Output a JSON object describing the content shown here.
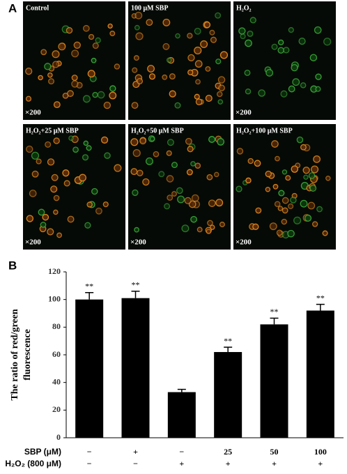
{
  "panel_a": {
    "label": "A",
    "panels": [
      {
        "title": "Control",
        "magnification": "×200"
      },
      {
        "title": "100 μM SBP"
      },
      {
        "title": "H₂O₂",
        "magnification": "×200"
      },
      {
        "title": "H₂O₂+25 μM SBP",
        "magnification": "×200"
      },
      {
        "title": "H₂O₂+50 μM SBP",
        "magnification": "×200"
      },
      {
        "title": "H₂O₂+100 μM SBP",
        "magnification": "×200"
      }
    ]
  },
  "chart_data": {
    "type": "bar",
    "label": "B",
    "y_label": [
      "The ratio of  red/green",
      "fluorescence"
    ],
    "series": [
      {
        "color": "#000000",
        "values": [
          100,
          101,
          33,
          62,
          82,
          92
        ],
        "errors": [
          5,
          5,
          2,
          3.5,
          4.5,
          4.5
        ]
      }
    ],
    "value_annotations": [
      "**",
      "**",
      null,
      "**",
      "**",
      "**"
    ],
    "condition_rows": [
      {
        "label": "SBP (μM)",
        "cells": [
          "−",
          "+",
          "−",
          "25",
          "50",
          "100"
        ]
      },
      {
        "label": "H₂O₂ (800 μM)",
        "cells": [
          "−",
          "−",
          "+",
          "+",
          "+",
          "+"
        ]
      }
    ],
    "ylim": [
      0,
      120
    ],
    "yticks": [
      0,
      20,
      40,
      60,
      80,
      100,
      120
    ]
  }
}
